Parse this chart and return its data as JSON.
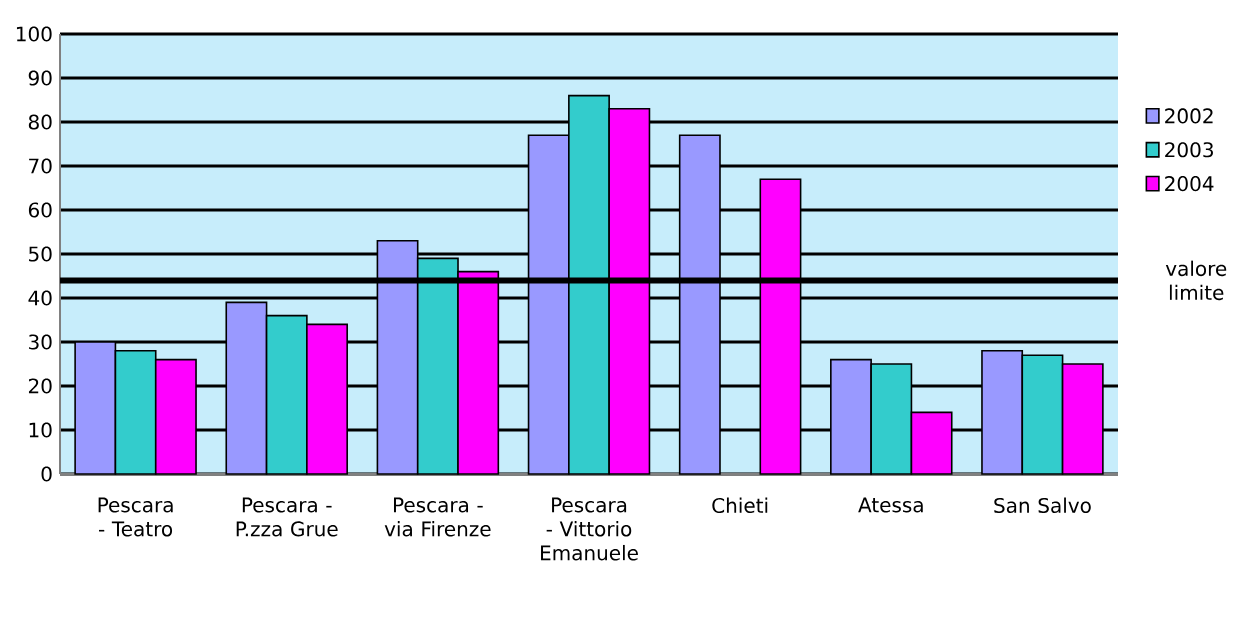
{
  "chart_data": {
    "type": "bar",
    "categories": [
      "Pescara - Teatro",
      "Pescara - P.zza Grue",
      "Pescara - via Firenze",
      "Pescara - Vittorio Emanuele",
      "Chieti",
      "Atessa",
      "San Salvo"
    ],
    "series": [
      {
        "name": "2002",
        "color": "#9999ff",
        "values": [
          30,
          39,
          53,
          77,
          77,
          26,
          28
        ]
      },
      {
        "name": "2003",
        "color": "#33cccc",
        "values": [
          28,
          36,
          49,
          86,
          null,
          25,
          27
        ]
      },
      {
        "name": "2004",
        "color": "#ff00ff",
        "values": [
          26,
          34,
          46,
          83,
          67,
          14,
          25
        ]
      }
    ],
    "ylim": [
      0,
      100
    ],
    "yticks": [
      0,
      10,
      20,
      30,
      40,
      50,
      60,
      70,
      80,
      90,
      100
    ],
    "grid": "y",
    "legend": "right",
    "ref_lines": [
      {
        "axis": "y",
        "value": 44,
        "label": "valore limite",
        "color": "#000000"
      }
    ]
  }
}
